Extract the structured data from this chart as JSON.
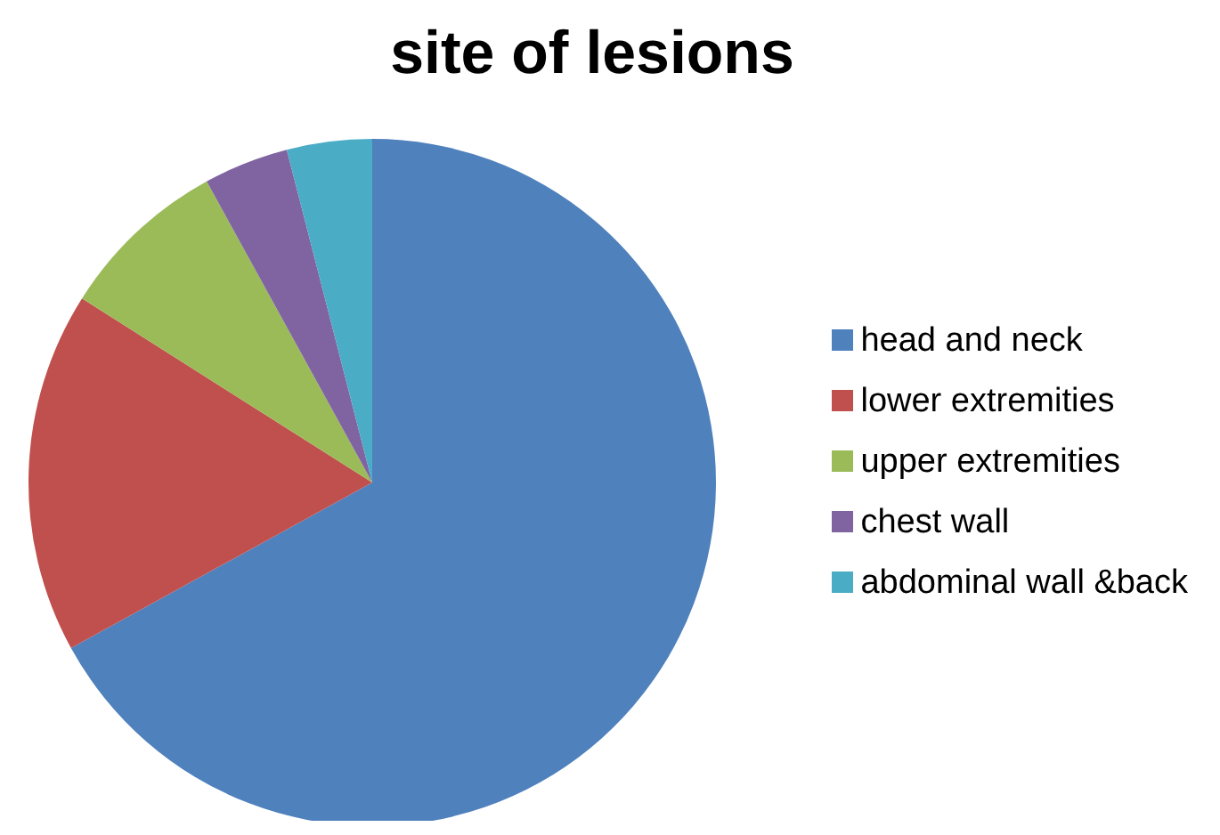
{
  "chart_data": {
    "type": "pie",
    "title": "site of lesions",
    "categories": [
      "head and neck",
      "lower extremities",
      "upper extremities",
      "chest wall",
      "abdominal wall &back"
    ],
    "values": [
      67,
      17,
      8,
      4,
      4
    ],
    "colors": [
      "#4f81bd",
      "#c0504d",
      "#9bbb59",
      "#8064a2",
      "#4bacc6"
    ],
    "legend": "right"
  }
}
